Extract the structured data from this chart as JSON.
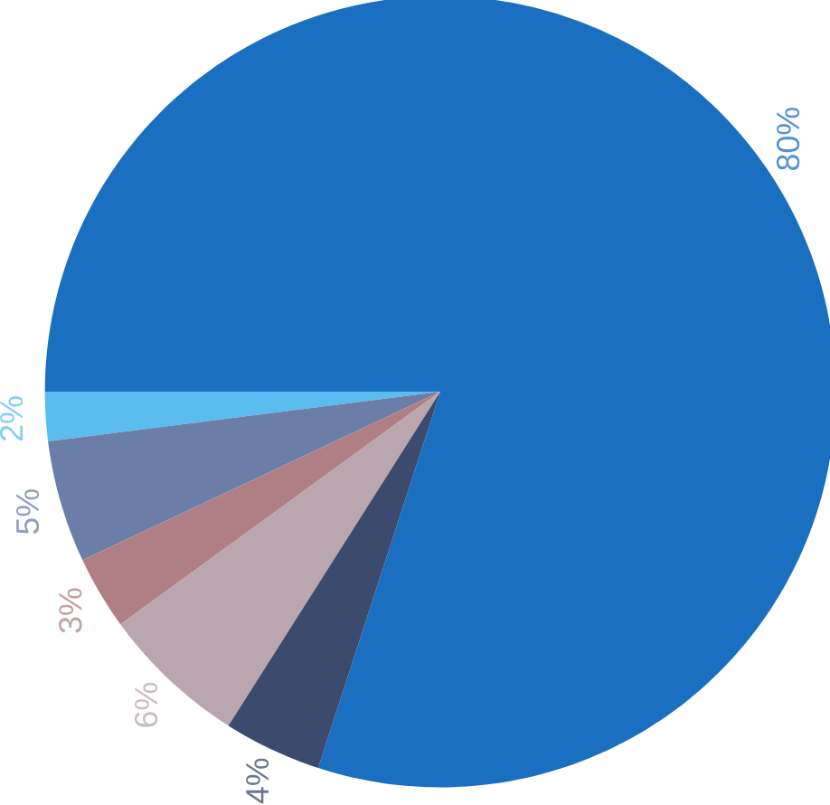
{
  "chart_data": {
    "type": "pie",
    "categories": [
      null,
      null,
      null,
      null,
      null,
      null
    ],
    "values": [
      80,
      2,
      5,
      3,
      6,
      4
    ],
    "value_labels": [
      "80%",
      "2%",
      "5%",
      "3%",
      "6%",
      "4%"
    ],
    "colors": [
      "#1a6fc0",
      "#5bbcef",
      "#6b7ea8",
      "#b07f85",
      "#b9a6ae",
      "#3c4a6e"
    ]
  }
}
